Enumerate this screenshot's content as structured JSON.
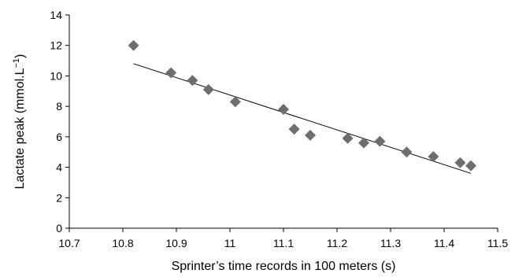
{
  "chart_data": {
    "type": "scatter",
    "xlabel": "Sprinter’s time records in 100 meters (s)",
    "ylabel": {
      "text": "Lactate peak (mmol.L",
      "superscript": "−1",
      "suffix": ")"
    },
    "xlim": [
      10.7,
      11.5
    ],
    "ylim": [
      0,
      14
    ],
    "x_ticks": [
      10.7,
      10.8,
      10.9,
      11,
      11.1,
      11.2,
      11.3,
      11.4,
      11.5
    ],
    "x_tick_labels": [
      "10.7",
      "10.8",
      "10.9",
      "11",
      "11.1",
      "11.2",
      "11.3",
      "11.4",
      "11.5"
    ],
    "y_ticks": [
      0,
      2,
      4,
      6,
      8,
      10,
      12,
      14
    ],
    "y_tick_labels": [
      "0",
      "2",
      "4",
      "6",
      "8",
      "10",
      "12",
      "14"
    ],
    "grid": false,
    "marker": "diamond",
    "marker_color": "#6e6e6e",
    "line_color": "#000000",
    "series": [
      {
        "x": [
          10.82,
          10.89,
          10.93,
          10.96,
          11.01,
          11.1,
          11.12,
          11.15,
          11.22,
          11.25,
          11.28,
          11.33,
          11.38,
          11.43,
          11.45
        ],
        "y": [
          12.0,
          10.2,
          9.7,
          9.1,
          8.3,
          7.8,
          6.5,
          6.1,
          5.9,
          5.6,
          5.7,
          5.0,
          4.7,
          4.3,
          4.1
        ]
      }
    ],
    "trendline": {
      "x": [
        10.82,
        11.45
      ],
      "y": [
        10.8,
        3.6
      ]
    }
  }
}
